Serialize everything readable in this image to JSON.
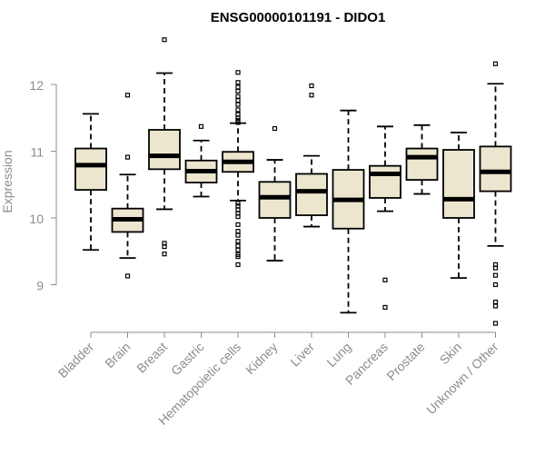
{
  "chart_data": {
    "type": "boxplot",
    "title": "ENSG00000101191 - DIDO1",
    "xlabel": "",
    "ylabel": "Expression",
    "ylim": [
      8.3,
      12.8
    ],
    "yticks": [
      9,
      10,
      11,
      12
    ],
    "box_fill": "#ede6cf",
    "categories": [
      "Bladder",
      "Brain",
      "Breast",
      "Gastric",
      "Hematopoietic cells",
      "Kidney",
      "Liver",
      "Lung",
      "Pancreas",
      "Prostate",
      "Skin",
      "Unknown / Other"
    ],
    "boxes": [
      {
        "name": "Bladder",
        "whisker_low": 9.52,
        "q1": 10.42,
        "median": 10.79,
        "q3": 11.04,
        "whisker_high": 11.56,
        "outliers": []
      },
      {
        "name": "Brain",
        "whisker_low": 9.4,
        "q1": 9.79,
        "median": 9.98,
        "q3": 10.14,
        "whisker_high": 10.65,
        "outliers": [
          11.84,
          10.91,
          9.13
        ]
      },
      {
        "name": "Breast",
        "whisker_low": 10.13,
        "q1": 10.73,
        "median": 10.93,
        "q3": 11.32,
        "whisker_high": 12.17,
        "outliers": [
          12.67,
          9.62,
          9.57,
          9.46
        ]
      },
      {
        "name": "Gastric",
        "whisker_low": 10.32,
        "q1": 10.53,
        "median": 10.7,
        "q3": 10.86,
        "whisker_high": 11.16,
        "outliers": [
          11.37
        ]
      },
      {
        "name": "Hematopoietic cells",
        "whisker_low": 10.26,
        "q1": 10.69,
        "median": 10.84,
        "q3": 10.99,
        "whisker_high": 11.42,
        "outliers": [
          12.18,
          12.03,
          11.96,
          11.9,
          11.82,
          11.76,
          11.7,
          11.62,
          11.55,
          11.5,
          11.46,
          11.43,
          10.22,
          10.18,
          10.12,
          10.07,
          10.02,
          9.9,
          9.8,
          9.74,
          9.65,
          9.58,
          9.52,
          9.45,
          9.42,
          9.3
        ]
      },
      {
        "name": "Kidney",
        "whisker_low": 9.36,
        "q1": 10.0,
        "median": 10.31,
        "q3": 10.54,
        "whisker_high": 10.87,
        "outliers": [
          11.34
        ]
      },
      {
        "name": "Liver",
        "whisker_low": 9.87,
        "q1": 10.04,
        "median": 10.4,
        "q3": 10.66,
        "whisker_high": 10.93,
        "outliers": [
          11.98,
          11.84
        ]
      },
      {
        "name": "Lung",
        "whisker_low": 8.58,
        "q1": 9.84,
        "median": 10.27,
        "q3": 10.72,
        "whisker_high": 11.61,
        "outliers": []
      },
      {
        "name": "Pancreas",
        "whisker_low": 10.1,
        "q1": 10.3,
        "median": 10.66,
        "q3": 10.78,
        "whisker_high": 11.37,
        "outliers": [
          9.07,
          8.66
        ]
      },
      {
        "name": "Prostate",
        "whisker_low": 10.36,
        "q1": 10.57,
        "median": 10.91,
        "q3": 11.04,
        "whisker_high": 11.39,
        "outliers": []
      },
      {
        "name": "Skin",
        "whisker_low": 9.1,
        "q1": 10.0,
        "median": 10.28,
        "q3": 11.02,
        "whisker_high": 11.28,
        "outliers": []
      },
      {
        "name": "Unknown / Other",
        "whisker_low": 9.58,
        "q1": 10.4,
        "median": 10.69,
        "q3": 11.07,
        "whisker_high": 12.01,
        "outliers": [
          12.31,
          9.3,
          9.25,
          9.14,
          9.0,
          8.74,
          8.68,
          8.42
        ]
      }
    ]
  }
}
